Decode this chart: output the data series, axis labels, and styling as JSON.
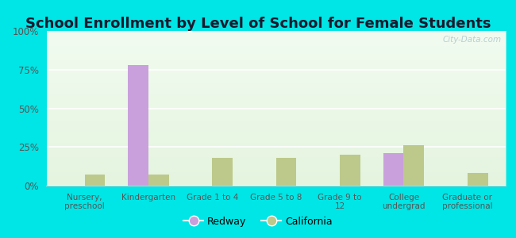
{
  "title": "School Enrollment by Level of School for Female Students",
  "categories": [
    "Nursery,\npreschool",
    "Kindergarten",
    "Grade 1 to 4",
    "Grade 5 to 8",
    "Grade 9 to\n12",
    "College\nundergrad",
    "Graduate or\nprofessional"
  ],
  "redway": [
    0,
    78,
    0,
    0,
    0,
    21,
    0
  ],
  "california": [
    7,
    7,
    18,
    18,
    20,
    26,
    8
  ],
  "redway_color": "#c9a0dc",
  "california_color": "#bcc98a",
  "bar_width": 0.32,
  "ylim": [
    0,
    100
  ],
  "yticks": [
    0,
    25,
    50,
    75,
    100
  ],
  "ytick_labels": [
    "0%",
    "25%",
    "50%",
    "75%",
    "100%"
  ],
  "outer_bg": "#00e5e5",
  "plot_bg": "#edf8ea",
  "title_fontsize": 13,
  "title_color": "#1a1a2e",
  "legend_labels": [
    "Redway",
    "California"
  ],
  "watermark": "City-Data.com",
  "tick_color": "#555555",
  "grid_color": "#ffffff",
  "spine_color": "#cccccc"
}
